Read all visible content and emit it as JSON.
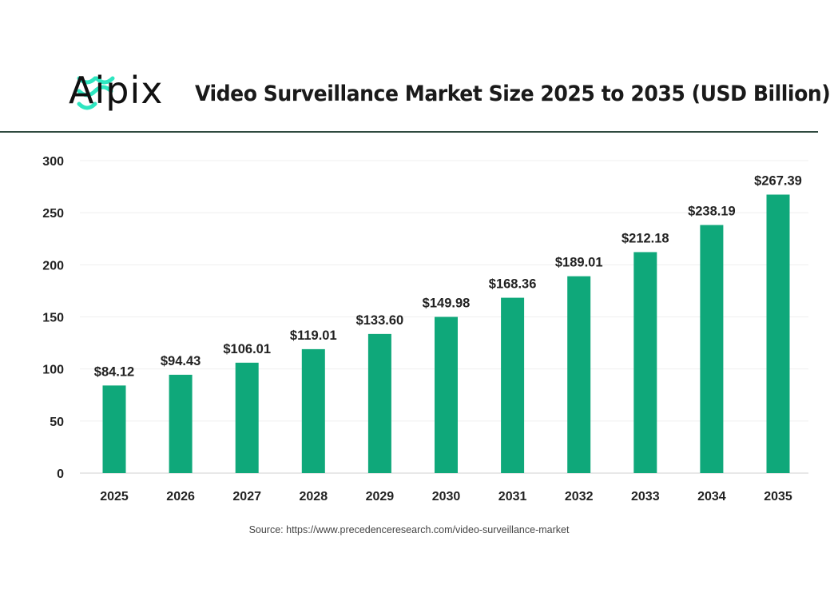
{
  "brand": {
    "name": "Aipix",
    "accent": "#2ee6c0"
  },
  "source": "Source: https://www.precedenceresearch.com/video-surveillance-market",
  "chart_data": {
    "type": "bar",
    "title": "Video Surveillance Market Size 2025 to 2035 (USD Billion)",
    "xlabel": "",
    "ylabel": "",
    "categories": [
      "2025",
      "2026",
      "2027",
      "2028",
      "2029",
      "2030",
      "2031",
      "2032",
      "2033",
      "2034",
      "2035"
    ],
    "values": [
      84.12,
      94.43,
      106.01,
      119.01,
      133.6,
      149.98,
      168.36,
      189.01,
      212.18,
      238.19,
      267.39
    ],
    "data_labels": [
      "$84.12",
      "$94.43",
      "$106.01",
      "$119.01",
      "$133.60",
      "$149.98",
      "$168.36",
      "$189.01",
      "$212.18",
      "$238.19",
      "$267.39"
    ],
    "ylim": [
      0,
      300
    ],
    "yticks": [
      "0",
      "50",
      "100",
      "150",
      "200",
      "250",
      "300"
    ],
    "grid": true,
    "bar_color": "#0fa87a"
  }
}
